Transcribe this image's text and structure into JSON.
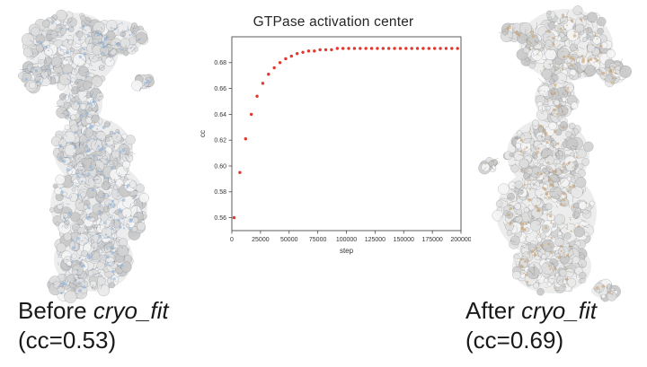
{
  "chart_data": {
    "type": "scatter",
    "title": "GTPase activation center",
    "xlabel": "step",
    "ylabel": "cc",
    "xlim": [
      0,
      200000
    ],
    "ylim": [
      0.55,
      0.7
    ],
    "xticks": [
      0,
      25000,
      50000,
      75000,
      100000,
      125000,
      150000,
      175000,
      200000
    ],
    "yticks": [
      0.56,
      0.58,
      0.6,
      0.62,
      0.64,
      0.66,
      0.68
    ],
    "marker_color": "#e0382e",
    "grid": false,
    "legend": "none",
    "x": [
      2000,
      7000,
      12000,
      17000,
      22000,
      27000,
      32000,
      37000,
      42000,
      47000,
      52000,
      57000,
      62000,
      67000,
      72000,
      77000,
      82000,
      87000,
      92000,
      97000,
      102000,
      107000,
      112000,
      117000,
      122000,
      127000,
      132000,
      137000,
      142000,
      147000,
      152000,
      157000,
      162000,
      167000,
      172000,
      177000,
      182000,
      187000,
      192000,
      197000
    ],
    "y": [
      0.56,
      0.595,
      0.621,
      0.64,
      0.654,
      0.664,
      0.671,
      0.676,
      0.68,
      0.683,
      0.685,
      0.687,
      0.688,
      0.689,
      0.689,
      0.69,
      0.69,
      0.69,
      0.691,
      0.691,
      0.691,
      0.691,
      0.691,
      0.691,
      0.691,
      0.691,
      0.691,
      0.691,
      0.691,
      0.691,
      0.691,
      0.691,
      0.691,
      0.691,
      0.691,
      0.691,
      0.691,
      0.691,
      0.691,
      0.691
    ]
  },
  "left_caption": {
    "prefix": "Before ",
    "italic": "cryo_fit",
    "cc": "(cc=0.53)"
  },
  "right_caption": {
    "prefix": "After ",
    "italic": "cryo_fit",
    "cc": "(cc=0.69)"
  }
}
